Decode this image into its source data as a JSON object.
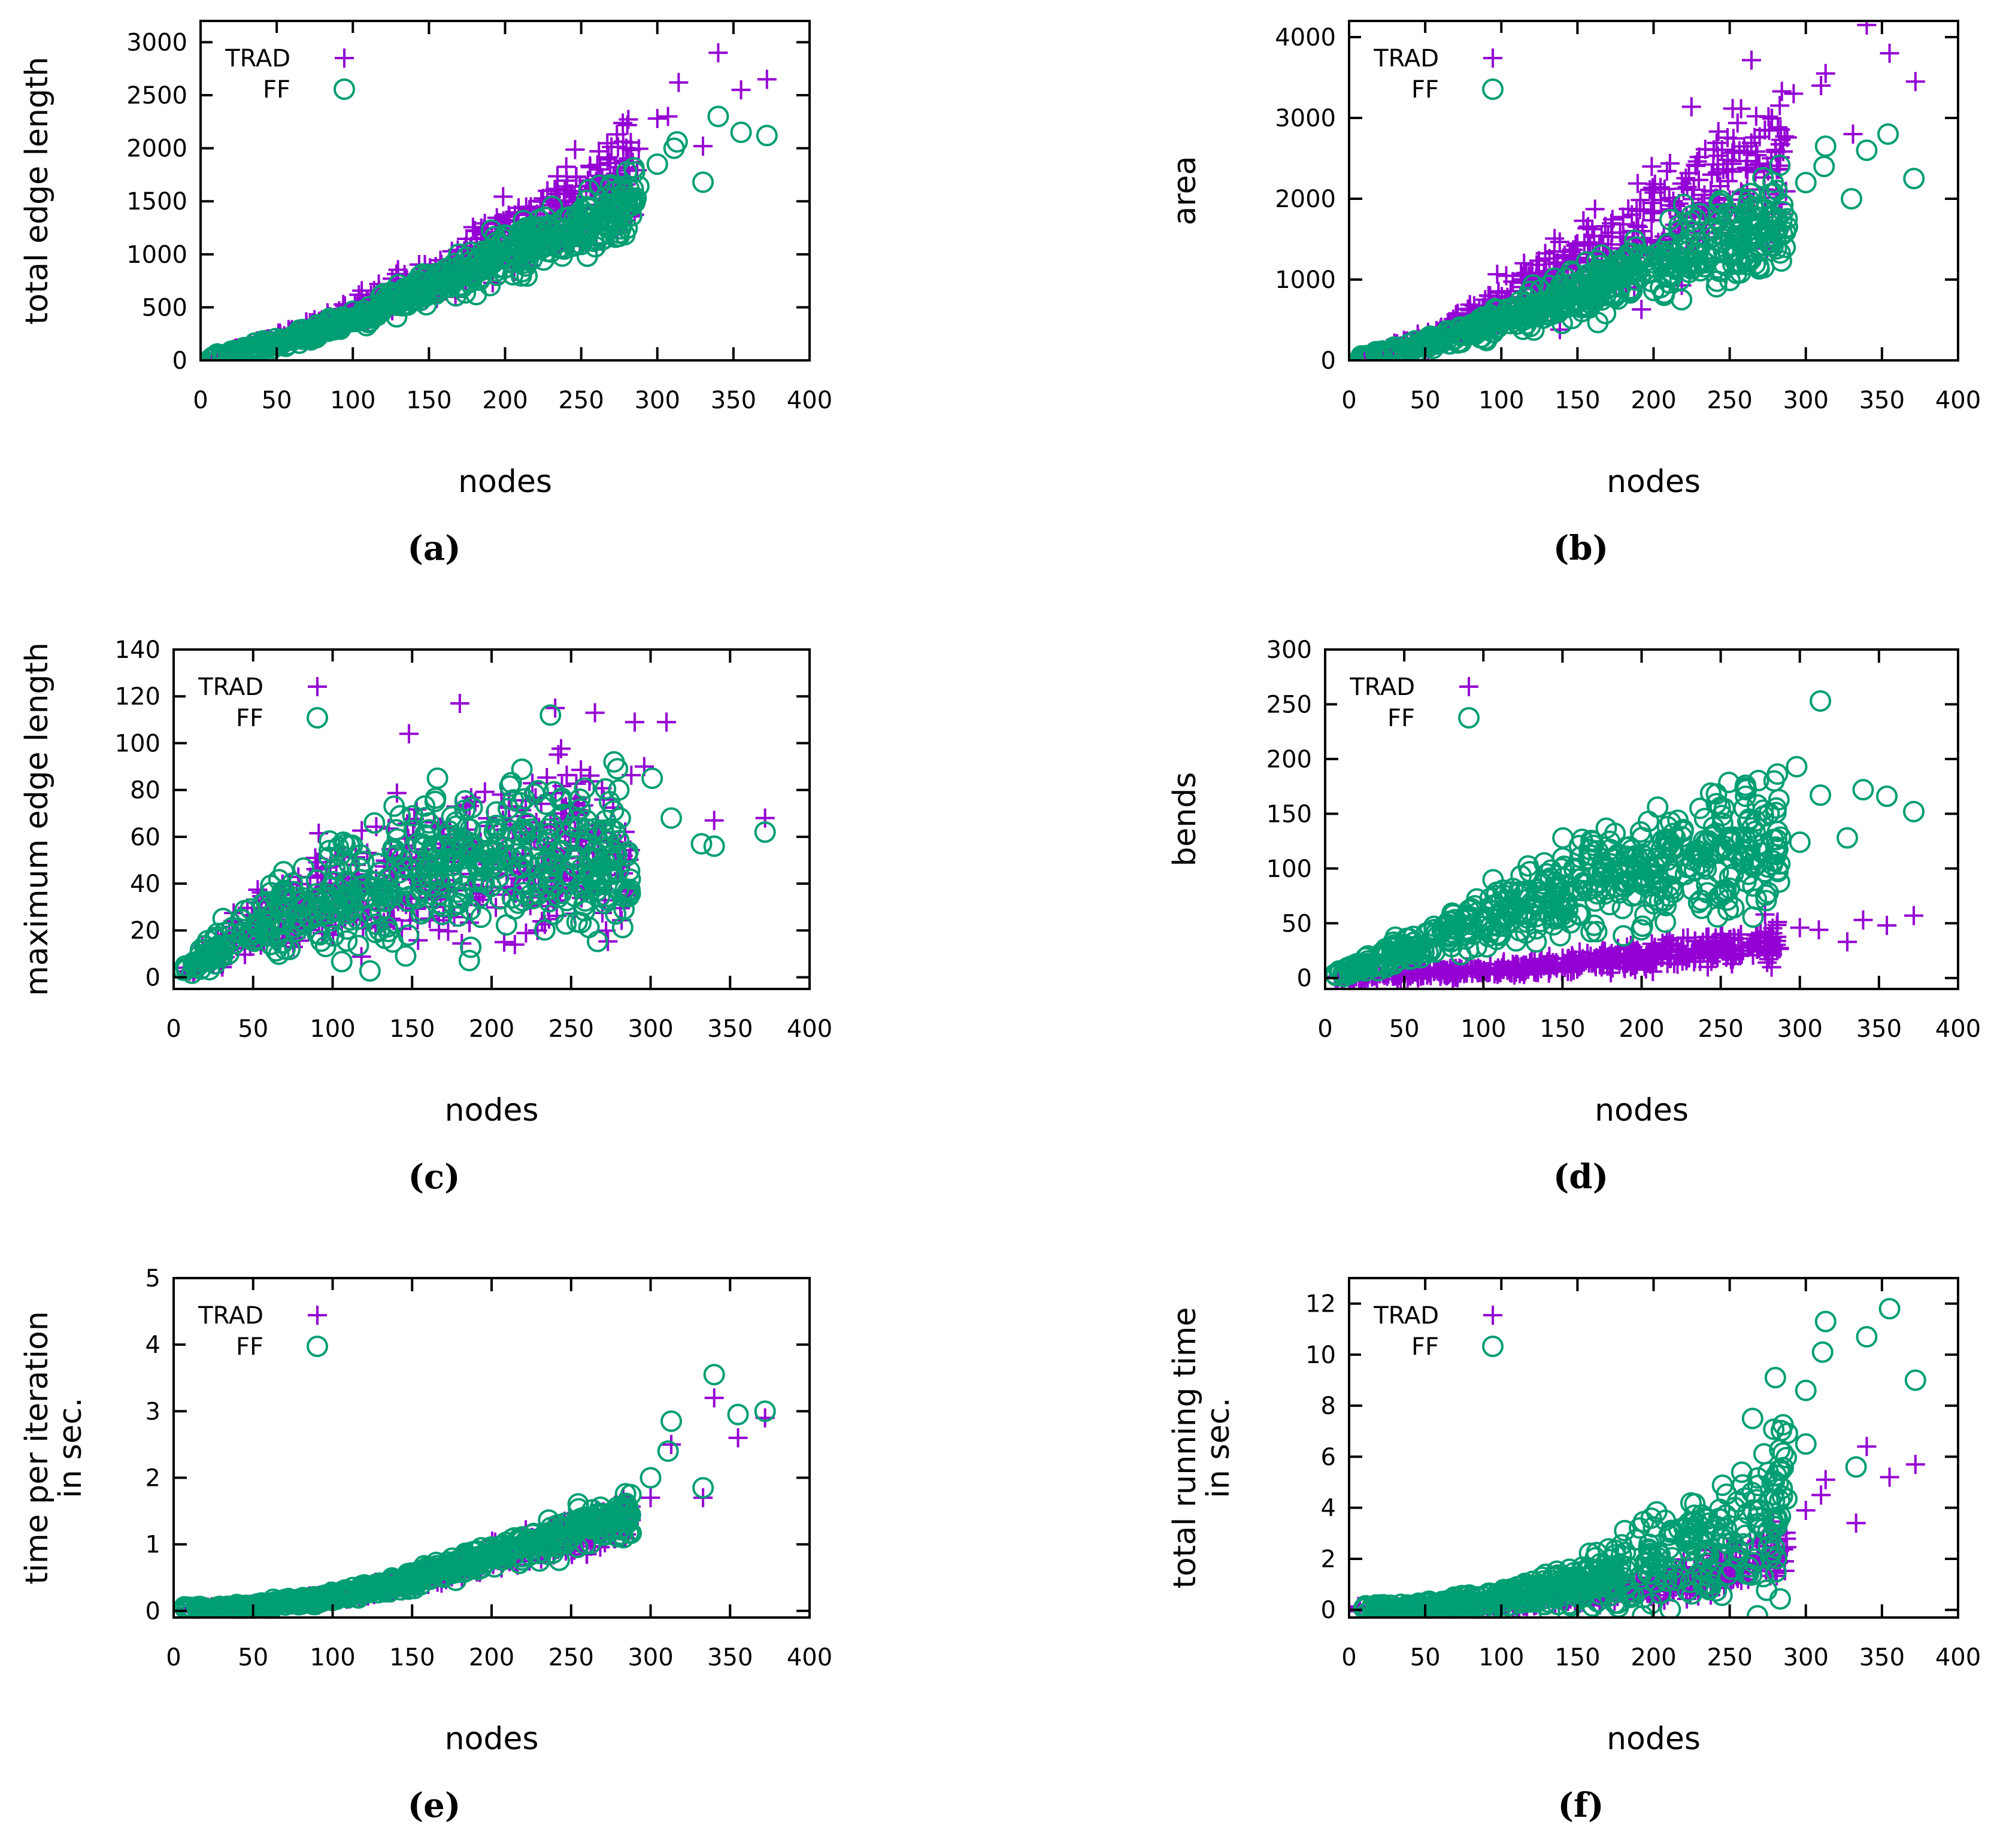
{
  "colors": {
    "trad": "#9400d3",
    "ff": "#009e73"
  },
  "chart_data": [
    {
      "id": "a",
      "type": "scatter",
      "caption": "(a)",
      "xlabel": "nodes",
      "ylabel": [
        "total edge length"
      ],
      "xlim": [
        0,
        400
      ],
      "ylim": [
        0,
        3200
      ],
      "xticks": [
        0,
        50,
        100,
        150,
        200,
        250,
        300,
        350,
        400
      ],
      "yticks": [
        0,
        500,
        1000,
        1500,
        2000,
        2500,
        3000
      ],
      "legend": [
        "TRAD",
        "FF"
      ],
      "legend_position": "top-left",
      "trend": {
        "TRAD": [
          [
            5,
            10
          ],
          [
            50,
            190
          ],
          [
            100,
            450
          ],
          [
            150,
            780
          ],
          [
            200,
            1150
          ],
          [
            250,
            1500
          ],
          [
            285,
            1780
          ]
        ],
        "FF": [
          [
            5,
            10
          ],
          [
            50,
            160
          ],
          [
            100,
            380
          ],
          [
            150,
            680
          ],
          [
            200,
            1000
          ],
          [
            250,
            1300
          ],
          [
            285,
            1500
          ]
        ]
      },
      "spread": {
        "TRAD": 0.14,
        "FF": 0.11
      },
      "outliers": {
        "TRAD": [
          [
            340,
            2900
          ],
          [
            372,
            2650
          ],
          [
            355,
            2550
          ],
          [
            314,
            2620
          ],
          [
            300,
            2280
          ],
          [
            307,
            2300
          ],
          [
            330,
            2020
          ]
        ],
        "FF": [
          [
            340,
            2300
          ],
          [
            355,
            2150
          ],
          [
            372,
            2120
          ],
          [
            313,
            2060
          ],
          [
            311,
            2000
          ],
          [
            330,
            1680
          ],
          [
            300,
            1850
          ]
        ]
      }
    },
    {
      "id": "b",
      "type": "scatter",
      "caption": "(b)",
      "xlabel": "nodes",
      "ylabel": [
        "area"
      ],
      "xlim": [
        0,
        400
      ],
      "ylim": [
        0,
        4200
      ],
      "xticks": [
        0,
        50,
        100,
        150,
        200,
        250,
        300,
        350,
        400
      ],
      "yticks": [
        0,
        1000,
        2000,
        3000,
        4000
      ],
      "legend": [
        "TRAD",
        "FF"
      ],
      "legend_position": "top-left",
      "trend": {
        "TRAD": [
          [
            5,
            10
          ],
          [
            50,
            250
          ],
          [
            100,
            700
          ],
          [
            150,
            1200
          ],
          [
            200,
            1700
          ],
          [
            250,
            2200
          ],
          [
            285,
            2500
          ]
        ],
        "FF": [
          [
            5,
            10
          ],
          [
            50,
            200
          ],
          [
            100,
            500
          ],
          [
            150,
            850
          ],
          [
            200,
            1200
          ],
          [
            250,
            1500
          ],
          [
            285,
            1700
          ]
        ]
      },
      "spread": {
        "TRAD": 0.2,
        "FF": 0.18
      },
      "outliers": {
        "TRAD": [
          [
            340,
            4150
          ],
          [
            355,
            3800
          ],
          [
            372,
            3450
          ],
          [
            313,
            3550
          ],
          [
            310,
            3400
          ],
          [
            292,
            3300
          ],
          [
            331,
            2800
          ]
        ],
        "FF": [
          [
            354,
            2800
          ],
          [
            340,
            2600
          ],
          [
            313,
            2650
          ],
          [
            330,
            2000
          ],
          [
            371,
            2250
          ],
          [
            312,
            2400
          ],
          [
            300,
            2200
          ]
        ]
      }
    },
    {
      "id": "c",
      "type": "scatter",
      "caption": "(c)",
      "xlabel": "nodes",
      "ylabel": [
        "maximum edge length"
      ],
      "xlim": [
        0,
        400
      ],
      "ylim": [
        -5,
        140
      ],
      "xticks": [
        0,
        50,
        100,
        150,
        200,
        250,
        300,
        350,
        400
      ],
      "yticks": [
        0,
        20,
        40,
        60,
        80,
        100,
        120,
        140
      ],
      "legend": [
        "TRAD",
        "FF"
      ],
      "legend_position": "top-left",
      "trend": {
        "TRAD": [
          [
            5,
            2
          ],
          [
            50,
            22
          ],
          [
            100,
            35
          ],
          [
            150,
            44
          ],
          [
            200,
            50
          ],
          [
            250,
            52
          ],
          [
            285,
            52
          ]
        ],
        "FF": [
          [
            5,
            2
          ],
          [
            50,
            22
          ],
          [
            100,
            35
          ],
          [
            150,
            45
          ],
          [
            200,
            51
          ],
          [
            250,
            52
          ],
          [
            285,
            52
          ]
        ]
      },
      "spread": {
        "TRAD": 0.32,
        "FF": 0.32
      },
      "outliers": {
        "TRAD": [
          [
            148,
            104
          ],
          [
            180,
            117
          ],
          [
            290,
            109
          ],
          [
            310,
            109
          ],
          [
            265,
            113
          ],
          [
            240,
            115
          ],
          [
            296,
            90
          ],
          [
            340,
            67
          ],
          [
            372,
            68
          ]
        ],
        "FF": [
          [
            237,
            112
          ],
          [
            277,
            92
          ],
          [
            301,
            85
          ],
          [
            332,
            57
          ],
          [
            340,
            56
          ],
          [
            372,
            62
          ],
          [
            313,
            68
          ],
          [
            280,
            80
          ]
        ]
      }
    },
    {
      "id": "d",
      "type": "scatter",
      "caption": "(d)",
      "xlabel": "nodes",
      "ylabel": [
        "bends"
      ],
      "xlim": [
        0,
        400
      ],
      "ylim": [
        -10,
        300
      ],
      "xticks": [
        0,
        50,
        100,
        150,
        200,
        250,
        300,
        350,
        400
      ],
      "yticks": [
        0,
        50,
        100,
        150,
        200,
        250,
        300
      ],
      "legend": [
        "TRAD",
        "FF"
      ],
      "legend_position": "top-left",
      "trend": {
        "TRAD": [
          [
            5,
            0
          ],
          [
            50,
            3
          ],
          [
            100,
            7
          ],
          [
            150,
            13
          ],
          [
            200,
            20
          ],
          [
            250,
            27
          ],
          [
            285,
            32
          ]
        ],
        "FF": [
          [
            5,
            2
          ],
          [
            50,
            25
          ],
          [
            100,
            55
          ],
          [
            150,
            80
          ],
          [
            200,
            100
          ],
          [
            250,
            115
          ],
          [
            285,
            125
          ]
        ]
      },
      "spread": {
        "TRAD": 0.28,
        "FF": 0.24
      },
      "outliers": {
        "TRAD": [
          [
            340,
            53
          ],
          [
            355,
            48
          ],
          [
            372,
            57
          ],
          [
            330,
            33
          ],
          [
            312,
            44
          ],
          [
            300,
            46
          ],
          [
            278,
            58
          ]
        ],
        "FF": [
          [
            313,
            253
          ],
          [
            298,
            193
          ],
          [
            340,
            172
          ],
          [
            355,
            166
          ],
          [
            372,
            152
          ],
          [
            330,
            128
          ],
          [
            313,
            167
          ],
          [
            300,
            124
          ],
          [
            280,
            78
          ]
        ]
      }
    },
    {
      "id": "e",
      "type": "scatter",
      "caption": "(e)",
      "xlabel": "nodes",
      "ylabel": [
        "time per iteration",
        "in sec."
      ],
      "xlim": [
        0,
        400
      ],
      "ylim": [
        -0.1,
        5
      ],
      "xticks": [
        0,
        50,
        100,
        150,
        200,
        250,
        300,
        350,
        400
      ],
      "yticks": [
        0,
        1,
        2,
        3,
        4,
        5
      ],
      "legend": [
        "TRAD",
        "FF"
      ],
      "legend_position": "top-left",
      "trend": {
        "TRAD": [
          [
            5,
            0.01
          ],
          [
            50,
            0.06
          ],
          [
            100,
            0.2
          ],
          [
            150,
            0.45
          ],
          [
            200,
            0.8
          ],
          [
            250,
            1.15
          ],
          [
            285,
            1.4
          ]
        ],
        "FF": [
          [
            5,
            0.01
          ],
          [
            50,
            0.06
          ],
          [
            100,
            0.21
          ],
          [
            150,
            0.47
          ],
          [
            200,
            0.83
          ],
          [
            250,
            1.2
          ],
          [
            285,
            1.45
          ]
        ]
      },
      "spread": {
        "TRAD": 0.12,
        "FF": 0.12
      },
      "outliers": {
        "TRAD": [
          [
            340,
            3.2
          ],
          [
            355,
            2.6
          ],
          [
            372,
            2.9
          ],
          [
            333,
            1.7
          ],
          [
            313,
            2.5
          ],
          [
            300,
            1.7
          ],
          [
            283,
            1.1
          ]
        ],
        "FF": [
          [
            340,
            3.55
          ],
          [
            355,
            2.95
          ],
          [
            372,
            3.0
          ],
          [
            333,
            1.85
          ],
          [
            313,
            2.85
          ],
          [
            311,
            2.4
          ],
          [
            300,
            2.0
          ],
          [
            283,
            1.1
          ]
        ]
      }
    },
    {
      "id": "f",
      "type": "scatter",
      "caption": "(f)",
      "xlabel": "nodes",
      "ylabel": [
        "total running time",
        "in sec."
      ],
      "xlim": [
        0,
        400
      ],
      "ylim": [
        -0.3,
        13
      ],
      "xticks": [
        0,
        50,
        100,
        150,
        200,
        250,
        300,
        350,
        400
      ],
      "yticks": [
        0,
        2,
        4,
        6,
        8,
        10,
        12
      ],
      "legend": [
        "TRAD",
        "FF"
      ],
      "legend_position": "top-left",
      "trend": {
        "TRAD": [
          [
            5,
            0.01
          ],
          [
            50,
            0.05
          ],
          [
            100,
            0.2
          ],
          [
            150,
            0.5
          ],
          [
            200,
            0.95
          ],
          [
            250,
            1.6
          ],
          [
            285,
            2.2
          ]
        ],
        "FF": [
          [
            5,
            0.02
          ],
          [
            50,
            0.12
          ],
          [
            100,
            0.45
          ],
          [
            150,
            1.0
          ],
          [
            200,
            1.9
          ],
          [
            250,
            3.0
          ],
          [
            285,
            4.0
          ]
        ]
      },
      "spread": {
        "TRAD": 0.25,
        "FF": 0.45
      },
      "outliers": {
        "TRAD": [
          [
            340,
            6.4
          ],
          [
            355,
            5.2
          ],
          [
            372,
            5.7
          ],
          [
            333,
            3.4
          ],
          [
            313,
            5.1
          ],
          [
            310,
            4.5
          ],
          [
            300,
            3.9
          ],
          [
            283,
            3.0
          ]
        ],
        "FF": [
          [
            355,
            11.8
          ],
          [
            313,
            11.3
          ],
          [
            340,
            10.7
          ],
          [
            311,
            10.1
          ],
          [
            372,
            9.0
          ],
          [
            280,
            9.1
          ],
          [
            300,
            8.6
          ],
          [
            265,
            7.5
          ],
          [
            333,
            5.6
          ],
          [
            300,
            6.5
          ]
        ]
      }
    }
  ]
}
